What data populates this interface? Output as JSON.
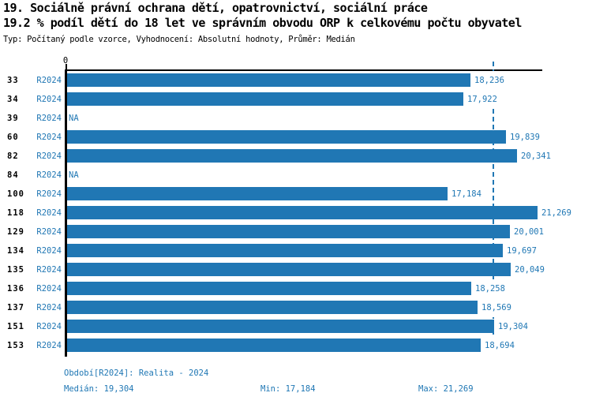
{
  "header": {
    "title_line1": "19. Sociálně právní ochrana dětí, opatrovnictví, sociální práce",
    "title_line2": "19.2 % podíl dětí do 18 let ve správním obvodu ORP k celkovému počtu obyvatel",
    "meta_line": "Typ: Počítaný podle vzorce, Vyhodnocení: Absolutní hodnoty, Průměr: Medián"
  },
  "chart_data": {
    "type": "bar",
    "orientation": "horizontal",
    "title": "19. Sociálně právní ochrana dětí, opatrovnictví, sociální práce",
    "subtitle": "19.2 % podíl dětí do 18 let ve správním obvodu ORP k celkovému počtu obyvatel",
    "series_name": "R2024",
    "categories": [
      "33",
      "34",
      "39",
      "60",
      "82",
      "84",
      "100",
      "118",
      "129",
      "134",
      "135",
      "136",
      "137",
      "151",
      "153"
    ],
    "values": [
      18236,
      17922,
      null,
      19839,
      20341,
      null,
      17184,
      21269,
      20001,
      19697,
      20049,
      18258,
      18569,
      19304,
      18694
    ],
    "value_labels": [
      "18,236",
      "17,922",
      "NA",
      "19,839",
      "20,341",
      "NA",
      "17,184",
      "21,269",
      "20,001",
      "19,697",
      "20,049",
      "18,258",
      "18,569",
      "19,304",
      "18,694"
    ],
    "na_label": "NA",
    "xlim": [
      0,
      21480
    ],
    "zero_tick_label": "0",
    "median_value": 19304,
    "min_value": 17184,
    "max_value": 21269,
    "bar_color": "#2077b4",
    "median_line_color": "#2077b4",
    "grid": false,
    "legend_position": "none"
  },
  "footer": {
    "period_label": "Období[R2024]: Realita - 2024",
    "median_label": "Medián: 19,304",
    "min_label": "Min: 17,184",
    "max_label": "Max: 21,269"
  }
}
